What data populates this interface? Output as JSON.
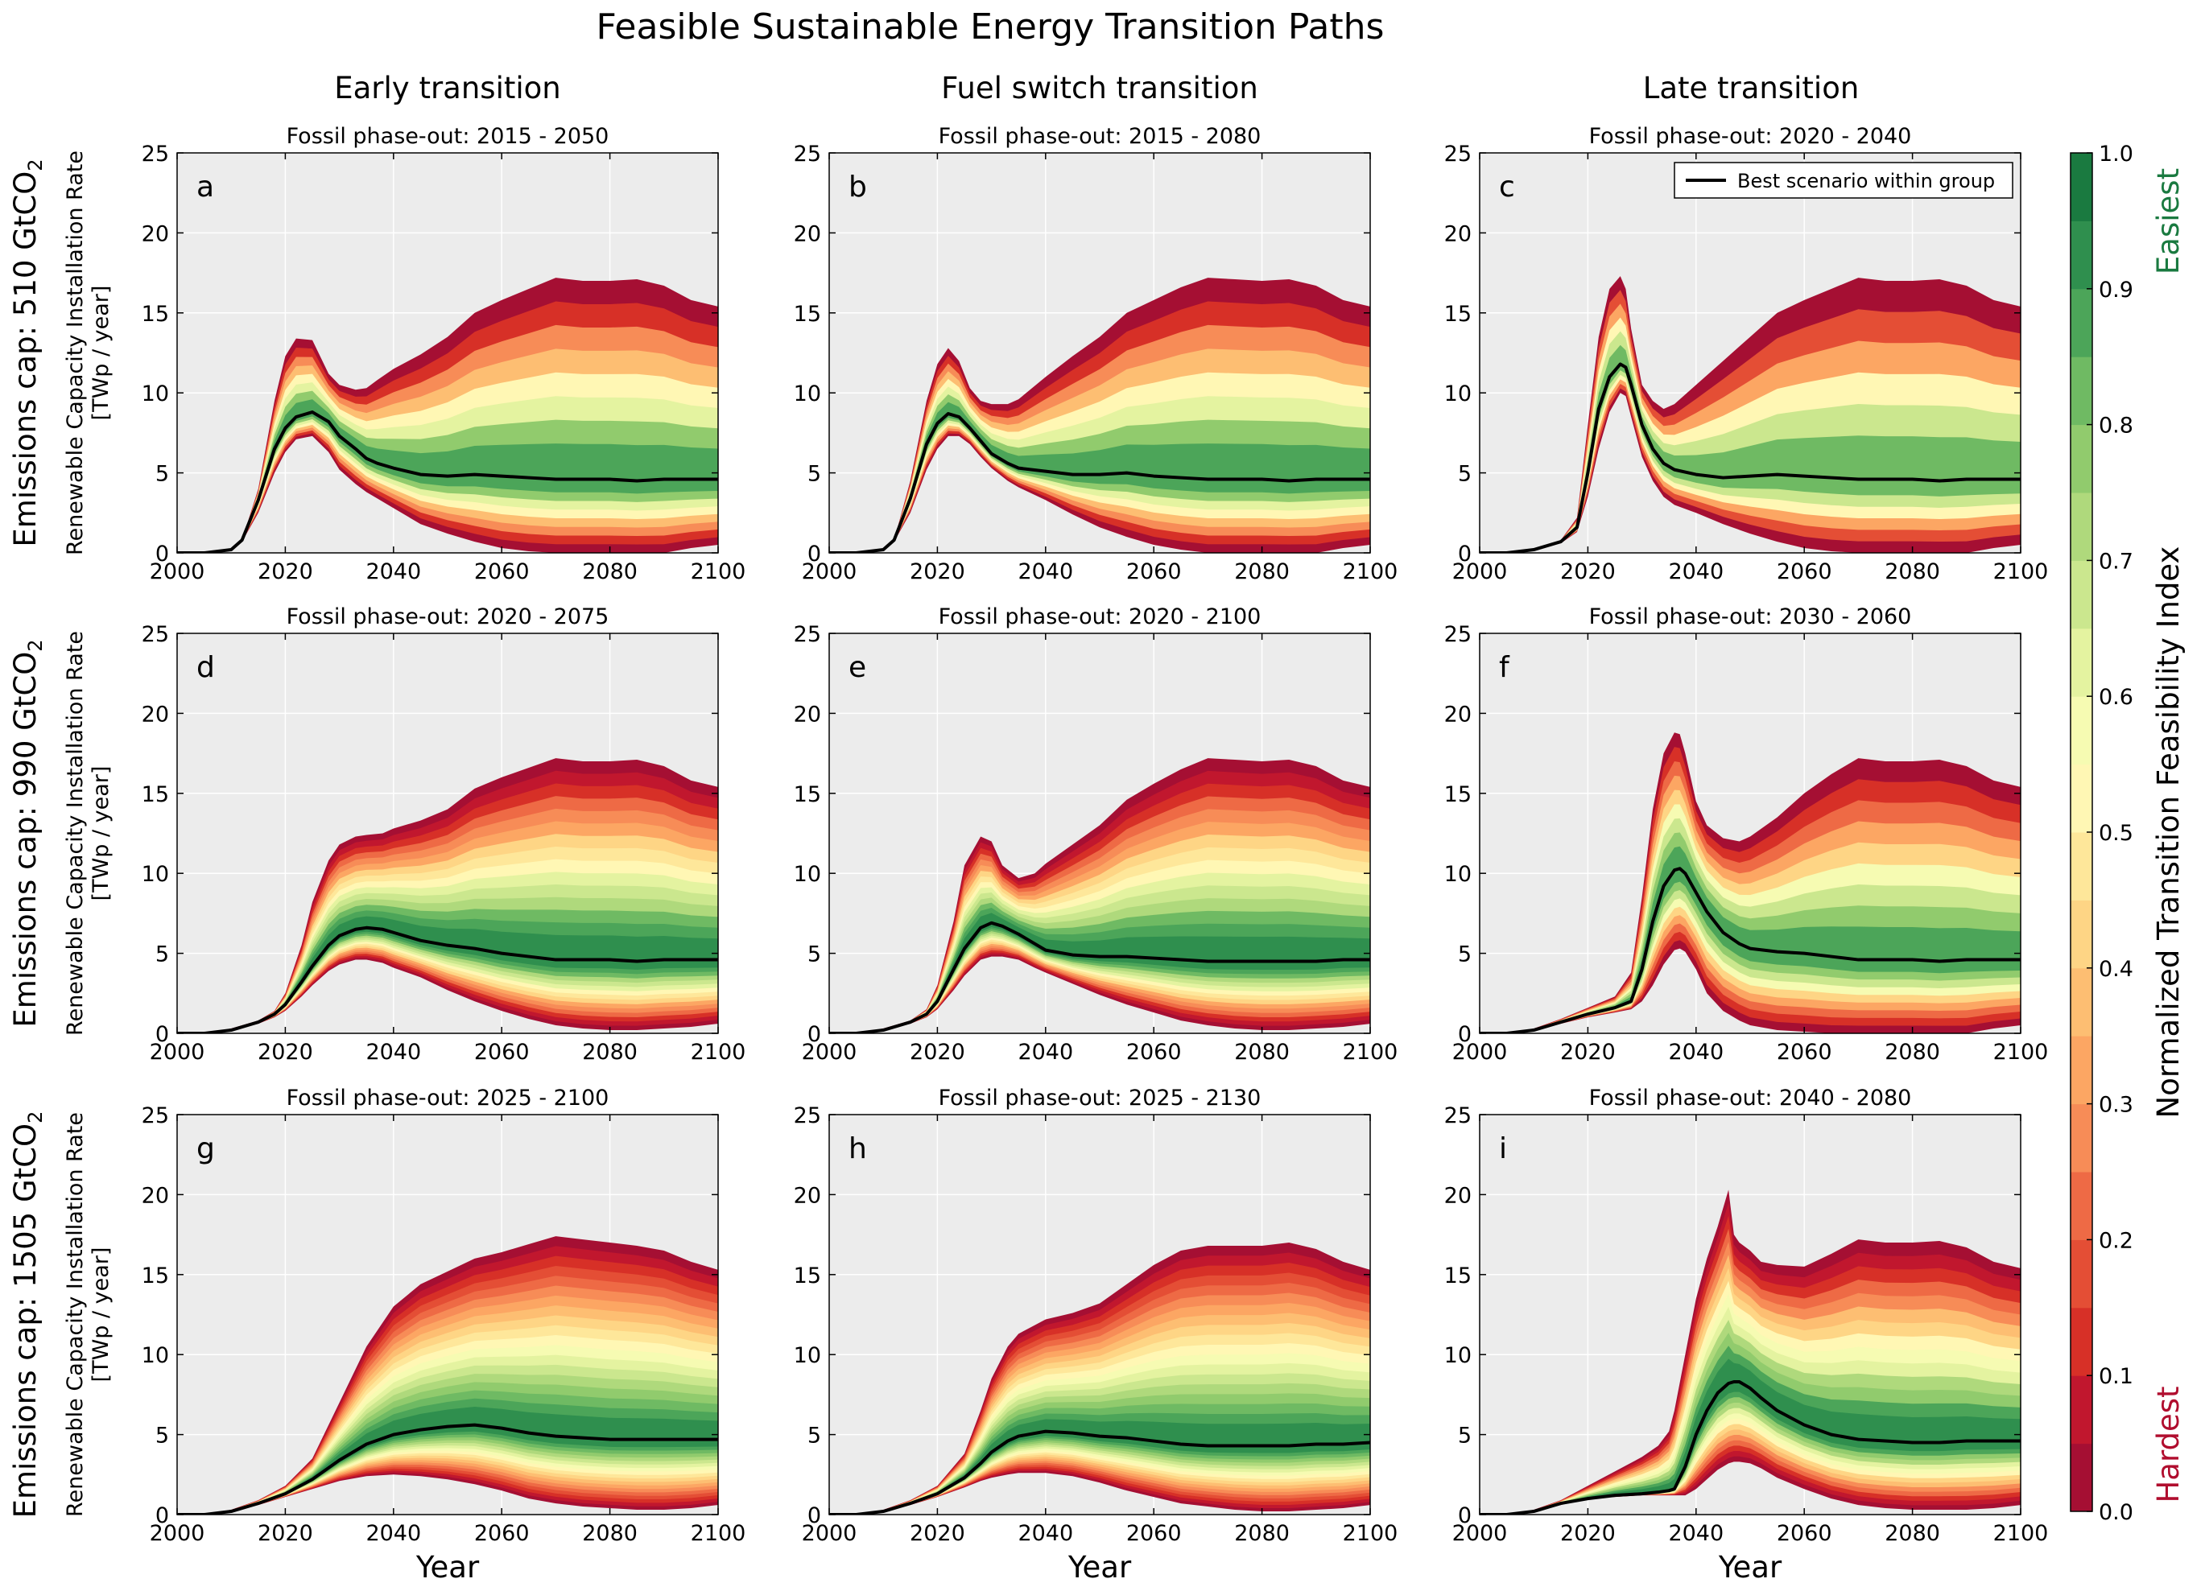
{
  "title": "Feasible Sustainable Energy Transition Paths",
  "column_titles": [
    "Early transition",
    "Fuel switch transition",
    "Late transition"
  ],
  "row_labels": [
    {
      "prefix": "Emissions cap: 510 GtCO",
      "sub": "2"
    },
    {
      "prefix": "Emissions cap: 990 GtCO",
      "sub": "2"
    },
    {
      "prefix": "Emissions cap: 1505 GtCO",
      "sub": "2"
    }
  ],
  "ylabel_line1": "Renewable Capacity Installation Rate",
  "ylabel_line2": "[TWp / year]",
  "xlabel": "Year",
  "legend_label": "Best scenario within group",
  "colorbar": {
    "label": "Normalized Transition Feasibility Index",
    "ticks": [
      "0.0",
      "0.1",
      "0.2",
      "0.3",
      "0.4",
      "0.5",
      "0.6",
      "0.7",
      "0.8",
      "0.9",
      "1.0"
    ],
    "easiest": "Easiest",
    "hardest": "Hardest",
    "easiest_color": "#1a7a40",
    "hardest_color": "#b00d2e"
  },
  "chart_data": [
    {
      "type": "area",
      "panel": "a",
      "subtitle": "Fossil phase-out: 2015 - 2050",
      "xlim": [
        2000,
        2100
      ],
      "ylim": [
        0,
        25
      ],
      "x": [
        2000,
        2005,
        2010,
        2012,
        2015,
        2018,
        2020,
        2022,
        2025,
        2028,
        2030,
        2033,
        2035,
        2037,
        2040,
        2045,
        2050,
        2055,
        2060,
        2065,
        2070,
        2075,
        2080,
        2085,
        2090,
        2095,
        2100
      ],
      "upper": [
        0,
        0,
        0.2,
        0.8,
        4.0,
        9.5,
        12.3,
        13.4,
        13.3,
        11.2,
        10.5,
        10.2,
        10.3,
        10.8,
        11.5,
        12.4,
        13.5,
        15.0,
        15.8,
        16.5,
        17.2,
        17.0,
        17.0,
        17.1,
        16.7,
        15.8,
        15.4
      ],
      "lower": [
        0,
        0,
        0.2,
        0.7,
        2.5,
        5.0,
        6.3,
        7.1,
        7.3,
        6.3,
        5.2,
        4.3,
        3.8,
        3.4,
        2.8,
        1.8,
        1.2,
        0.7,
        0.3,
        0.1,
        0,
        0,
        0,
        0,
        0,
        0.3,
        0.5
      ],
      "max_index": 0.4,
      "best_scenario": [
        0,
        0,
        0.2,
        0.8,
        3.3,
        6.5,
        7.8,
        8.5,
        8.8,
        8.2,
        7.3,
        6.5,
        5.9,
        5.6,
        5.3,
        4.9,
        4.8,
        4.9,
        4.8,
        4.7,
        4.6,
        4.6,
        4.6,
        4.5,
        4.6,
        4.6,
        4.6
      ]
    },
    {
      "type": "area",
      "panel": "b",
      "subtitle": "Fossil phase-out: 2015 - 2080",
      "xlim": [
        2000,
        2100
      ],
      "ylim": [
        0,
        25
      ],
      "x": [
        2000,
        2005,
        2010,
        2012,
        2015,
        2018,
        2020,
        2022,
        2024,
        2026,
        2028,
        2030,
        2033,
        2035,
        2040,
        2045,
        2050,
        2055,
        2060,
        2065,
        2070,
        2075,
        2080,
        2085,
        2090,
        2095,
        2100
      ],
      "upper": [
        0,
        0,
        0.2,
        0.8,
        4.5,
        9.5,
        11.8,
        12.8,
        12.0,
        10.3,
        9.5,
        9.3,
        9.3,
        9.6,
        11.0,
        12.3,
        13.5,
        15.0,
        15.8,
        16.6,
        17.2,
        17.1,
        17.0,
        17.1,
        16.7,
        15.8,
        15.4
      ],
      "lower": [
        0,
        0,
        0.2,
        0.7,
        2.5,
        5.2,
        6.5,
        7.3,
        7.3,
        6.8,
        6.0,
        5.3,
        4.5,
        4.1,
        3.3,
        2.4,
        1.6,
        1.0,
        0.5,
        0.2,
        0,
        0,
        0,
        0,
        0,
        0.3,
        0.5
      ],
      "max_index": 0.4,
      "best_scenario": [
        0,
        0,
        0.2,
        0.8,
        3.4,
        6.8,
        8.1,
        8.7,
        8.5,
        7.8,
        7.0,
        6.2,
        5.6,
        5.3,
        5.1,
        4.9,
        4.9,
        5.0,
        4.8,
        4.7,
        4.6,
        4.6,
        4.6,
        4.5,
        4.6,
        4.6,
        4.6
      ]
    },
    {
      "type": "area",
      "panel": "c",
      "subtitle": "Fossil phase-out: 2020 - 2040",
      "xlim": [
        2000,
        2100
      ],
      "ylim": [
        0,
        25
      ],
      "x": [
        2000,
        2005,
        2010,
        2015,
        2018,
        2020,
        2022,
        2024,
        2026,
        2027,
        2028,
        2030,
        2032,
        2034,
        2036,
        2040,
        2045,
        2050,
        2055,
        2060,
        2065,
        2070,
        2075,
        2080,
        2085,
        2090,
        2095,
        2100
      ],
      "upper": [
        0,
        0,
        0.2,
        0.8,
        2.2,
        8.0,
        13.5,
        16.5,
        17.3,
        16.5,
        14.0,
        10.5,
        9.5,
        9.0,
        9.3,
        10.5,
        12.0,
        13.5,
        15.0,
        15.8,
        16.5,
        17.2,
        17.0,
        17.0,
        17.1,
        16.7,
        15.8,
        15.4
      ],
      "lower": [
        0,
        0,
        0.2,
        0.6,
        1.3,
        3.5,
        6.5,
        8.8,
        10.0,
        9.8,
        8.5,
        6.0,
        4.5,
        3.5,
        3.0,
        2.5,
        1.8,
        1.2,
        0.7,
        0.3,
        0.1,
        0,
        0,
        0,
        0,
        0,
        0.3,
        0.5
      ],
      "max_index": 0.3,
      "best_scenario": [
        0,
        0,
        0.2,
        0.7,
        1.6,
        5.0,
        9.0,
        11.0,
        11.8,
        11.6,
        10.5,
        8.0,
        6.5,
        5.6,
        5.2,
        4.9,
        4.7,
        4.8,
        4.9,
        4.8,
        4.7,
        4.6,
        4.6,
        4.6,
        4.5,
        4.6,
        4.6,
        4.6
      ]
    },
    {
      "type": "area",
      "panel": "d",
      "subtitle": "Fossil phase-out: 2020 - 2075",
      "xlim": [
        2000,
        2100
      ],
      "ylim": [
        0,
        25
      ],
      "x": [
        2000,
        2005,
        2010,
        2015,
        2018,
        2020,
        2023,
        2025,
        2028,
        2030,
        2033,
        2035,
        2038,
        2040,
        2045,
        2050,
        2055,
        2060,
        2065,
        2070,
        2075,
        2080,
        2085,
        2090,
        2095,
        2100
      ],
      "upper": [
        0,
        0,
        0.3,
        0.8,
        1.4,
        2.5,
        5.5,
        8.2,
        10.8,
        11.8,
        12.3,
        12.4,
        12.5,
        12.8,
        13.3,
        14.0,
        15.3,
        16.0,
        16.6,
        17.2,
        17.0,
        17.0,
        17.1,
        16.7,
        15.8,
        15.4
      ],
      "lower": [
        0,
        0,
        0.2,
        0.6,
        1.0,
        1.4,
        2.3,
        3.0,
        3.9,
        4.3,
        4.6,
        4.6,
        4.4,
        4.1,
        3.5,
        2.7,
        2.0,
        1.4,
        0.9,
        0.5,
        0.3,
        0.2,
        0.2,
        0.3,
        0.4,
        0.6
      ],
      "max_index": 0.75,
      "best_scenario": [
        0,
        0,
        0.2,
        0.7,
        1.2,
        1.8,
        3.2,
        4.2,
        5.5,
        6.1,
        6.5,
        6.6,
        6.5,
        6.3,
        5.8,
        5.5,
        5.3,
        5.0,
        4.8,
        4.6,
        4.6,
        4.6,
        4.5,
        4.6,
        4.6,
        4.6
      ]
    },
    {
      "type": "area",
      "panel": "e",
      "subtitle": "Fossil phase-out: 2020 - 2100",
      "xlim": [
        2000,
        2100
      ],
      "ylim": [
        0,
        25
      ],
      "x": [
        2000,
        2005,
        2010,
        2015,
        2018,
        2020,
        2023,
        2025,
        2028,
        2030,
        2032,
        2035,
        2038,
        2040,
        2045,
        2050,
        2055,
        2060,
        2065,
        2070,
        2075,
        2080,
        2085,
        2090,
        2095,
        2100
      ],
      "upper": [
        0,
        0,
        0.3,
        0.8,
        1.5,
        3.0,
        7.0,
        10.5,
        12.3,
        12.0,
        10.5,
        9.7,
        10.0,
        10.6,
        11.8,
        13.0,
        14.6,
        15.6,
        16.5,
        17.2,
        17.1,
        17.0,
        17.1,
        16.7,
        15.8,
        15.4
      ],
      "lower": [
        0,
        0,
        0.2,
        0.6,
        1.0,
        1.5,
        2.7,
        3.6,
        4.6,
        4.8,
        4.8,
        4.6,
        4.1,
        3.8,
        3.1,
        2.4,
        1.8,
        1.3,
        0.8,
        0.5,
        0.3,
        0.2,
        0.2,
        0.3,
        0.4,
        0.6
      ],
      "max_index": 0.75,
      "best_scenario": [
        0,
        0,
        0.2,
        0.7,
        1.2,
        2.0,
        4.0,
        5.3,
        6.6,
        6.9,
        6.7,
        6.2,
        5.6,
        5.2,
        4.9,
        4.8,
        4.8,
        4.7,
        4.6,
        4.5,
        4.5,
        4.5,
        4.5,
        4.5,
        4.6,
        4.6
      ]
    },
    {
      "type": "area",
      "panel": "f",
      "subtitle": "Fossil phase-out: 2030 - 2060",
      "xlim": [
        2000,
        2100
      ],
      "ylim": [
        0,
        25
      ],
      "x": [
        2000,
        2005,
        2010,
        2015,
        2020,
        2025,
        2028,
        2030,
        2032,
        2034,
        2036,
        2037,
        2038,
        2040,
        2042,
        2045,
        2048,
        2050,
        2055,
        2060,
        2065,
        2070,
        2075,
        2080,
        2085,
        2090,
        2095,
        2100
      ],
      "upper": [
        0,
        0,
        0.3,
        0.9,
        1.6,
        2.3,
        3.8,
        8.5,
        14.0,
        17.5,
        18.8,
        18.7,
        17.5,
        14.5,
        13.0,
        12.2,
        12.0,
        12.3,
        13.5,
        15.0,
        16.2,
        17.2,
        17.0,
        17.0,
        17.1,
        16.7,
        15.8,
        15.4
      ],
      "lower": [
        0,
        0,
        0.2,
        0.6,
        1.0,
        1.3,
        1.5,
        2.0,
        3.0,
        4.3,
        5.2,
        5.3,
        5.1,
        4.0,
        2.5,
        1.4,
        0.8,
        0.5,
        0.2,
        0.1,
        0,
        0,
        0,
        0,
        0,
        0,
        0.3,
        0.5
      ],
      "max_index": 0.45,
      "best_scenario": [
        0,
        0,
        0.2,
        0.7,
        1.2,
        1.6,
        2.0,
        4.0,
        7.0,
        9.2,
        10.2,
        10.3,
        10.0,
        8.8,
        7.6,
        6.3,
        5.6,
        5.3,
        5.1,
        5.0,
        4.8,
        4.6,
        4.6,
        4.6,
        4.5,
        4.6,
        4.6,
        4.6
      ]
    },
    {
      "type": "area",
      "panel": "g",
      "subtitle": "Fossil phase-out: 2025 - 2100",
      "xlim": [
        2000,
        2100
      ],
      "ylim": [
        0,
        25
      ],
      "x": [
        2000,
        2005,
        2010,
        2015,
        2020,
        2025,
        2030,
        2035,
        2040,
        2045,
        2050,
        2055,
        2060,
        2065,
        2070,
        2075,
        2080,
        2085,
        2090,
        2095,
        2100
      ],
      "upper": [
        0,
        0,
        0.3,
        0.9,
        1.8,
        3.5,
        7.0,
        10.5,
        13.0,
        14.4,
        15.2,
        16.0,
        16.4,
        16.9,
        17.4,
        17.2,
        17.0,
        16.8,
        16.5,
        15.8,
        15.3
      ],
      "lower": [
        0,
        0,
        0.2,
        0.6,
        1.1,
        1.6,
        2.1,
        2.4,
        2.5,
        2.4,
        2.2,
        1.9,
        1.5,
        1.0,
        0.7,
        0.5,
        0.4,
        0.3,
        0.3,
        0.4,
        0.6
      ],
      "max_index": 0.95,
      "best_scenario": [
        0,
        0,
        0.2,
        0.7,
        1.3,
        2.2,
        3.4,
        4.4,
        5.0,
        5.3,
        5.5,
        5.6,
        5.4,
        5.1,
        4.9,
        4.8,
        4.7,
        4.7,
        4.7,
        4.7,
        4.7
      ]
    },
    {
      "type": "area",
      "panel": "h",
      "subtitle": "Fossil phase-out: 2025 - 2130",
      "xlim": [
        2000,
        2100
      ],
      "ylim": [
        0,
        25
      ],
      "x": [
        2000,
        2005,
        2010,
        2015,
        2020,
        2025,
        2028,
        2030,
        2033,
        2035,
        2040,
        2045,
        2050,
        2055,
        2060,
        2065,
        2070,
        2075,
        2080,
        2085,
        2090,
        2095,
        2100
      ],
      "upper": [
        0,
        0,
        0.3,
        0.9,
        1.8,
        3.8,
        6.5,
        8.5,
        10.5,
        11.3,
        12.2,
        12.6,
        13.2,
        14.4,
        15.6,
        16.5,
        16.8,
        16.8,
        16.8,
        17.0,
        16.6,
        15.8,
        15.3
      ],
      "lower": [
        0,
        0,
        0.2,
        0.6,
        1.1,
        1.7,
        2.1,
        2.3,
        2.5,
        2.6,
        2.6,
        2.4,
        2.0,
        1.5,
        1.1,
        0.7,
        0.5,
        0.3,
        0.2,
        0.2,
        0.3,
        0.4,
        0.6
      ],
      "max_index": 0.95,
      "best_scenario": [
        0,
        0,
        0.2,
        0.7,
        1.3,
        2.3,
        3.2,
        3.9,
        4.6,
        4.9,
        5.2,
        5.1,
        4.9,
        4.8,
        4.6,
        4.4,
        4.3,
        4.3,
        4.3,
        4.3,
        4.4,
        4.4,
        4.5
      ]
    },
    {
      "type": "area",
      "panel": "i",
      "subtitle": "Fossil phase-out: 2040 - 2080",
      "xlim": [
        2000,
        2100
      ],
      "ylim": [
        0,
        25
      ],
      "x": [
        2000,
        2005,
        2010,
        2015,
        2020,
        2025,
        2030,
        2033,
        2035,
        2036,
        2038,
        2040,
        2042,
        2044,
        2046,
        2047,
        2048,
        2050,
        2052,
        2055,
        2060,
        2065,
        2070,
        2075,
        2080,
        2085,
        2090,
        2095,
        2100
      ],
      "upper": [
        0,
        0,
        0.3,
        0.9,
        1.8,
        2.7,
        3.6,
        4.3,
        5.2,
        6.5,
        10.0,
        13.5,
        16.0,
        18.0,
        20.3,
        17.5,
        17.0,
        16.5,
        15.8,
        15.6,
        15.5,
        16.3,
        17.2,
        17.0,
        17.0,
        17.1,
        16.7,
        15.8,
        15.4
      ],
      "lower": [
        0,
        0,
        0.2,
        0.6,
        1.0,
        1.1,
        1.2,
        1.2,
        1.2,
        1.2,
        1.2,
        1.6,
        2.2,
        2.8,
        3.2,
        3.3,
        3.3,
        3.2,
        2.9,
        2.3,
        1.6,
        1.0,
        0.6,
        0.4,
        0.3,
        0.3,
        0.3,
        0.4,
        0.6
      ],
      "max_index": 0.7,
      "best_scenario": [
        0,
        0,
        0.2,
        0.7,
        1.0,
        1.2,
        1.3,
        1.4,
        1.5,
        1.6,
        3.0,
        5.0,
        6.5,
        7.6,
        8.2,
        8.3,
        8.3,
        7.9,
        7.3,
        6.5,
        5.6,
        5.0,
        4.7,
        4.6,
        4.5,
        4.5,
        4.6,
        4.6,
        4.6
      ]
    }
  ]
}
